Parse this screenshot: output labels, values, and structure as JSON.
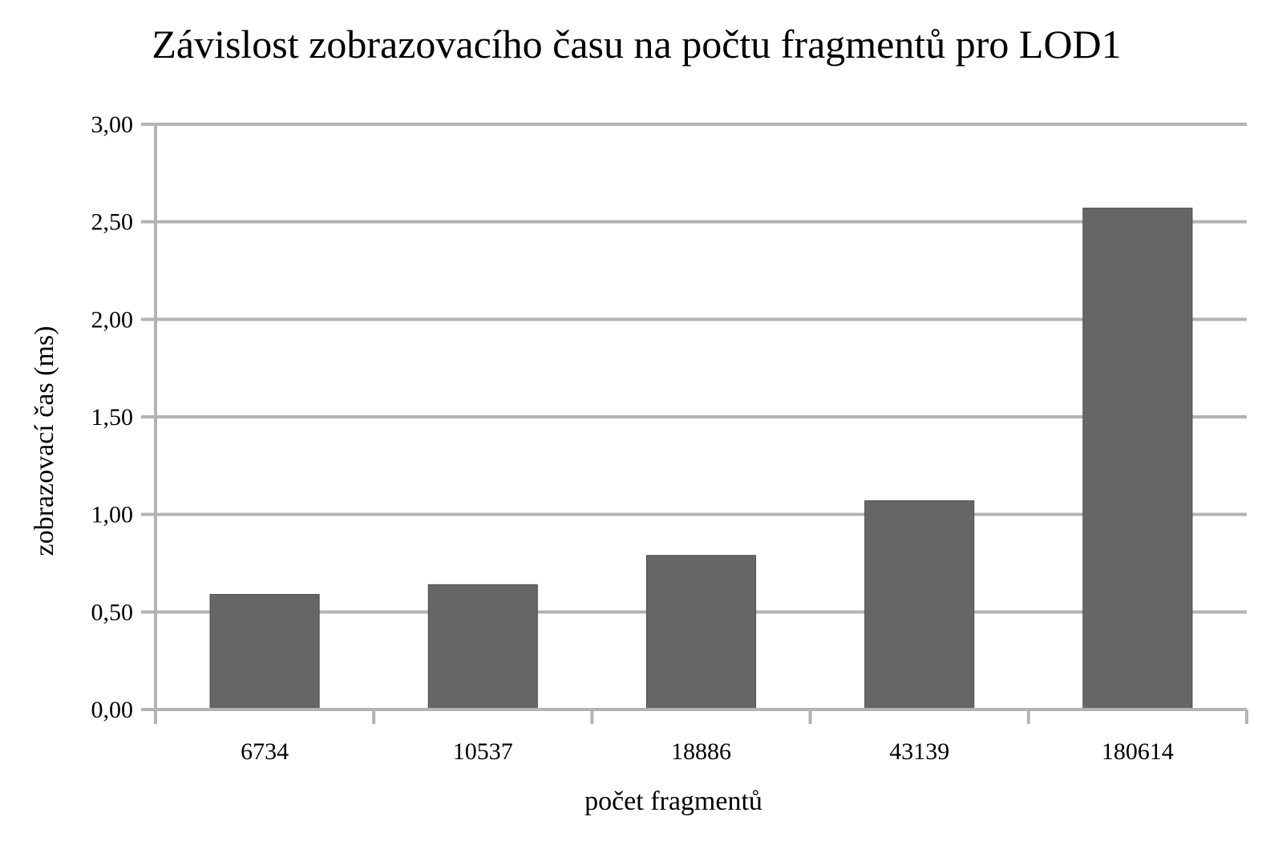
{
  "chart_data": {
    "type": "bar",
    "title": "Závislost zobrazovacího času na počtu fragmentů pro LOD1",
    "xlabel": "počet fragmentů",
    "ylabel": "zobrazovací čas (ms)",
    "categories": [
      "6734",
      "10537",
      "18886",
      "43139",
      "180614"
    ],
    "values": [
      0.59,
      0.64,
      0.79,
      1.07,
      2.57
    ],
    "ylim": [
      0,
      3
    ],
    "yticks": [
      0,
      0.5,
      1,
      1.5,
      2,
      2.5,
      3
    ],
    "ytick_labels": [
      "0,00",
      "0,50",
      "1,00",
      "1,50",
      "2,00",
      "2,50",
      "3,00"
    ],
    "grid": true,
    "legend": "none",
    "bar_color": "#666666",
    "grid_color": "#b3b3b3",
    "axis_color": "#b3b3b3"
  }
}
